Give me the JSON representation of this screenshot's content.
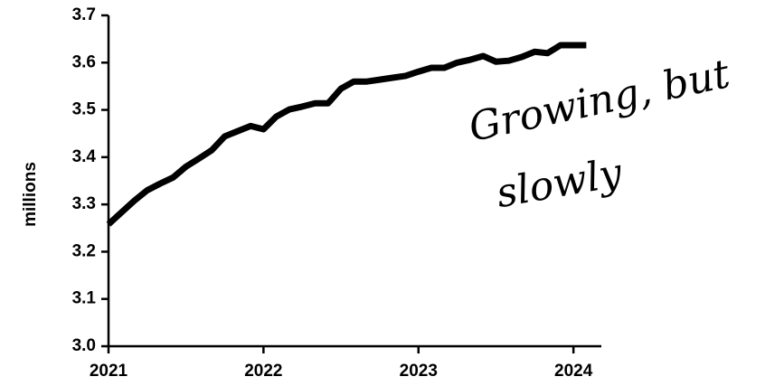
{
  "chart_data": {
    "type": "line",
    "ylabel": "millions",
    "annotation": [
      "Growing, but",
      "slowly"
    ],
    "x": [
      2021,
      2021.083,
      2021.167,
      2021.25,
      2021.333,
      2021.417,
      2021.5,
      2021.583,
      2021.667,
      2021.75,
      2021.833,
      2021.917,
      2022,
      2022.083,
      2022.167,
      2022.25,
      2022.333,
      2022.417,
      2022.5,
      2022.583,
      2022.667,
      2022.75,
      2022.833,
      2022.917,
      2023,
      2023.083,
      2023.167,
      2023.25,
      2023.333,
      2023.417,
      2023.5,
      2023.583,
      2023.667,
      2023.75,
      2023.833,
      2023.917,
      2024,
      2024.083
    ],
    "series": [
      {
        "color": "#000000",
        "values": [
          3.258,
          3.283,
          3.308,
          3.33,
          3.344,
          3.357,
          3.38,
          3.397,
          3.415,
          3.444,
          3.455,
          3.466,
          3.459,
          3.486,
          3.501,
          3.507,
          3.514,
          3.514,
          3.545,
          3.56,
          3.56,
          3.564,
          3.568,
          3.572,
          3.581,
          3.589,
          3.589,
          3.6,
          3.606,
          3.614,
          3.602,
          3.604,
          3.612,
          3.623,
          3.62,
          3.637,
          3.637,
          3.637
        ]
      }
    ],
    "xlim": [
      2021,
      2024.18
    ],
    "xticks": [
      2021,
      2022,
      2023,
      2024
    ],
    "ylim": [
      3.0,
      3.7
    ],
    "yticks": [
      {
        "value": 3.0,
        "label": "3.0"
      },
      3.1,
      3.2,
      3.3,
      3.4,
      3.5,
      3.6,
      3.7
    ],
    "grid": false
  }
}
